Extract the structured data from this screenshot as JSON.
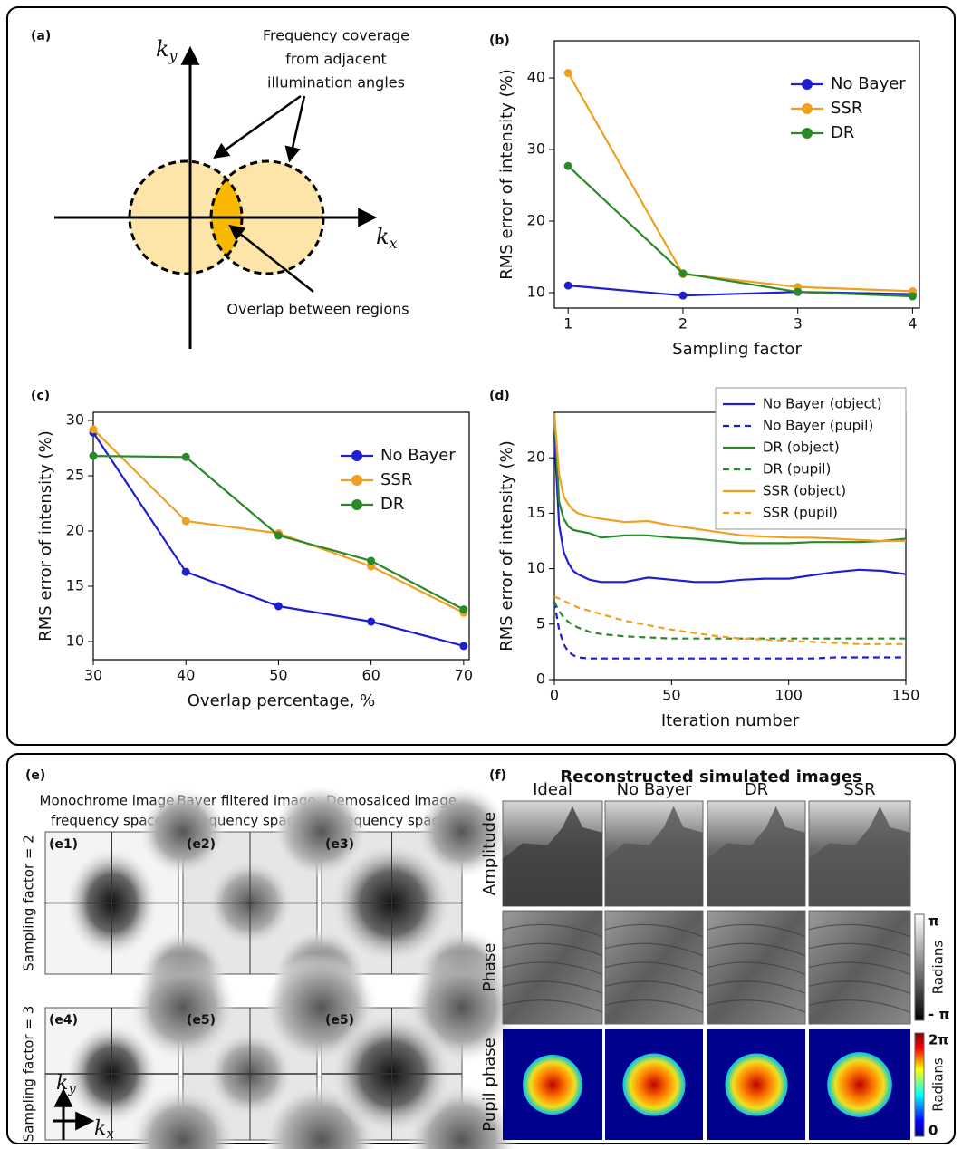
{
  "figure": {
    "a": {
      "panel_label": "(a)",
      "ky": {
        "base": "k",
        "sub": "y"
      },
      "kx": {
        "base": "k",
        "sub": "x"
      },
      "coverage_note": [
        "Frequency coverage",
        "from adjacent",
        "illumination angles"
      ],
      "overlap_note": "Overlap between regions"
    },
    "e": {
      "panel_label": "(e)",
      "columns": [
        [
          "Monochrome image",
          "frequency space"
        ],
        [
          "Bayer filtered image",
          "frequency space"
        ],
        [
          "Demosaiced image",
          "frequency space"
        ]
      ],
      "rows": [
        "Sampling factor = 2",
        "Sampling factor = 3"
      ],
      "tiles": [
        "(e1)",
        "(e2)",
        "(e3)",
        "(e4)",
        "(e5)",
        "(e5)"
      ],
      "ky": {
        "base": "k",
        "sub": "y"
      },
      "kx": {
        "base": "k",
        "sub": "x"
      }
    },
    "f": {
      "panel_label": "(f)",
      "title": "Reconstructed simulated images",
      "columns": [
        "Ideal",
        "No Bayer",
        "DR",
        "SSR"
      ],
      "rows": [
        "Amplitude",
        "Phase",
        "Pupil phase"
      ],
      "phase_colorbar": {
        "top": "π",
        "bottom": "- π",
        "label": "Radians"
      },
      "pupil_colorbar": {
        "top": "2π",
        "bottom": "0",
        "label": "Radians"
      }
    }
  },
  "chart_data": [
    {
      "type": "line",
      "panel_label": "(b)",
      "xlabel": "Sampling factor",
      "ylabel": "RMS error of intensity (%)",
      "x": [
        1,
        2,
        3,
        4
      ],
      "xlim": [
        0.88,
        4.06
      ],
      "xticks": [
        1,
        2,
        3,
        4
      ],
      "ylim": [
        7.85,
        45.2
      ],
      "yticks": [
        10,
        20,
        30,
        40
      ],
      "markers": true,
      "legend": "upper right",
      "series": [
        {
          "name": "No Bayer",
          "color": "#1f1fd0",
          "values": [
            11,
            9.6,
            10.1,
            9.8
          ]
        },
        {
          "name": "SSR",
          "color": "#f0a020",
          "values": [
            40.7,
            12.6,
            10.8,
            10.2
          ]
        },
        {
          "name": "DR",
          "color": "#2a8a2a",
          "values": [
            27.7,
            12.7,
            10.1,
            9.5
          ]
        }
      ]
    },
    {
      "type": "line",
      "panel_label": "(c)",
      "xlabel": "Overlap percentage, %",
      "ylabel": "RMS error of intensity (%)",
      "x": [
        30,
        40,
        50,
        60,
        70
      ],
      "xlim": [
        30,
        70.6
      ],
      "xticks": [
        30,
        40,
        50,
        60,
        70
      ],
      "ylim": [
        8.36,
        30.74
      ],
      "yticks": [
        10,
        15,
        20,
        25,
        30
      ],
      "markers": true,
      "legend": "upper right",
      "series": [
        {
          "name": "No Bayer",
          "color": "#1f1fd0",
          "values": [
            28.9,
            16.3,
            13.2,
            11.8,
            9.6
          ]
        },
        {
          "name": "SSR",
          "color": "#f0a020",
          "values": [
            29.2,
            20.9,
            19.8,
            16.8,
            12.6
          ]
        },
        {
          "name": "DR",
          "color": "#2a8a2a",
          "values": [
            26.8,
            26.7,
            19.6,
            17.3,
            12.9
          ]
        }
      ]
    },
    {
      "type": "line",
      "panel_label": "(d)",
      "xlabel": "Iteration  number",
      "ylabel": "RMS error of intensity (%)",
      "x": [
        0,
        2,
        4,
        6,
        8,
        10,
        15,
        20,
        30,
        40,
        50,
        60,
        70,
        80,
        90,
        100,
        110,
        120,
        130,
        140,
        150
      ],
      "xlim": [
        0,
        150
      ],
      "xticks": [
        0,
        50,
        100,
        150
      ],
      "ylim": [
        0,
        24.1
      ],
      "yticks": [
        0,
        5,
        10,
        15,
        20
      ],
      "markers": false,
      "legend": "upper right",
      "series": [
        {
          "name": "No Bayer (object)",
          "color": "#1f1fd0",
          "dashed": false,
          "values": [
            22,
            14,
            11.5,
            10.5,
            9.8,
            9.5,
            9,
            8.8,
            8.8,
            9.2,
            9,
            8.8,
            8.8,
            9,
            9.1,
            9.1,
            9.4,
            9.7,
            9.9,
            9.8,
            9.5
          ]
        },
        {
          "name": "No Bayer (pupil)",
          "color": "#1f1fd0",
          "dashed": true,
          "values": [
            7,
            4.5,
            3.2,
            2.5,
            2.2,
            2,
            1.9,
            1.9,
            1.9,
            1.9,
            1.9,
            1.9,
            1.9,
            1.9,
            1.9,
            1.9,
            1.9,
            2,
            2,
            2,
            2
          ]
        },
        {
          "name": "DR (object)",
          "color": "#2a8a2a",
          "dashed": false,
          "values": [
            24,
            16,
            14.5,
            13.8,
            13.5,
            13.4,
            13.2,
            12.8,
            13,
            13,
            12.8,
            12.7,
            12.5,
            12.3,
            12.3,
            12.3,
            12.4,
            12.4,
            12.4,
            12.5,
            12.7
          ]
        },
        {
          "name": "DR (pupil)",
          "color": "#2a8a2a",
          "dashed": true,
          "values": [
            7,
            6.2,
            5.6,
            5.2,
            4.9,
            4.7,
            4.3,
            4.1,
            3.9,
            3.8,
            3.7,
            3.7,
            3.7,
            3.7,
            3.7,
            3.7,
            3.7,
            3.7,
            3.7,
            3.7,
            3.7
          ]
        },
        {
          "name": "SSR (object)",
          "color": "#f0a020",
          "dashed": false,
          "values": [
            24,
            18.5,
            16.5,
            15.8,
            15.3,
            15,
            14.7,
            14.5,
            14.2,
            14.3,
            13.9,
            13.6,
            13.3,
            13,
            12.9,
            12.8,
            12.8,
            12.7,
            12.6,
            12.5,
            12.5
          ]
        },
        {
          "name": "SSR (pupil)",
          "color": "#f0a020",
          "dashed": true,
          "values": [
            7.5,
            7.3,
            7.1,
            6.9,
            6.7,
            6.5,
            6.2,
            5.9,
            5.3,
            4.9,
            4.5,
            4.2,
            3.9,
            3.7,
            3.6,
            3.5,
            3.4,
            3.3,
            3.2,
            3.2,
            3.2
          ]
        }
      ]
    }
  ]
}
